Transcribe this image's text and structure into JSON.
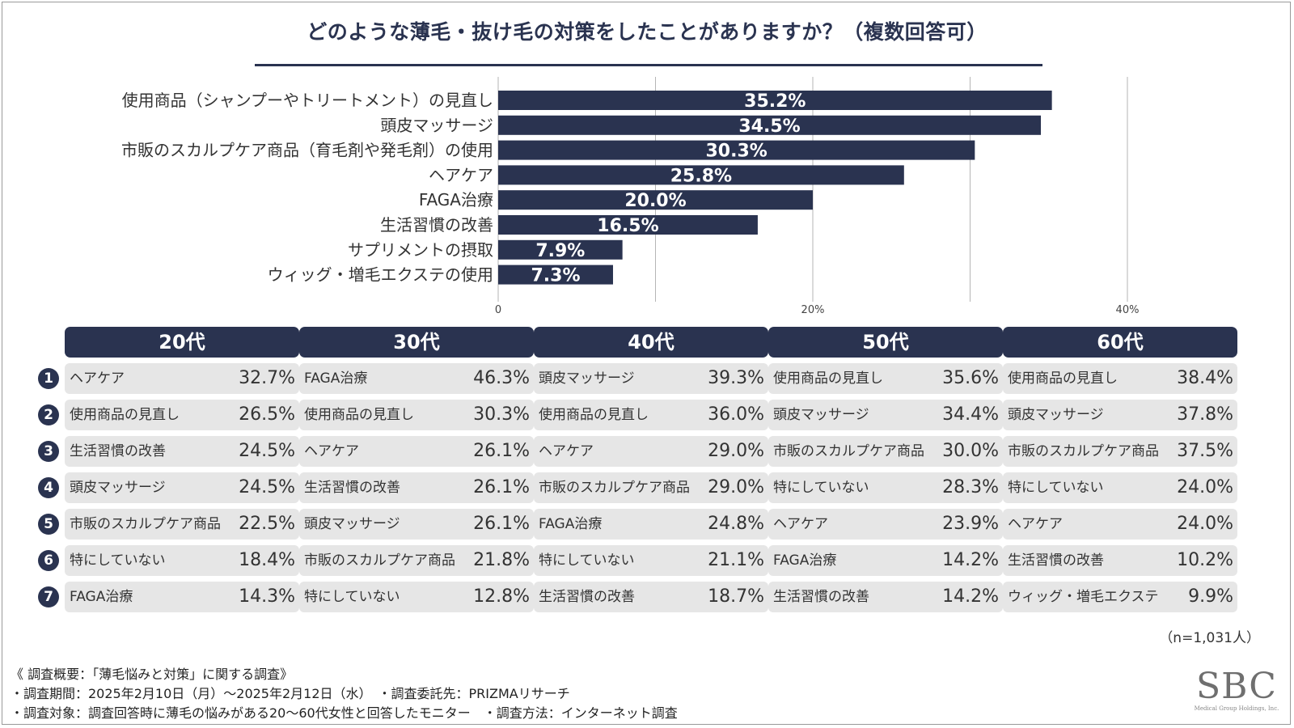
{
  "title": "どのような薄毛・抜け毛の対策をしたことがありますか？（複数回答可）",
  "chart_data": {
    "type": "bar",
    "orientation": "horizontal",
    "title": "どのような薄毛・抜け毛の対策をしたことがありますか？（複数回答可）",
    "categories": [
      "使用商品（シャンプーやトリートメント）の見直し",
      "頭皮マッサージ",
      "市販のスカルプケア商品（育毛剤や発毛剤）の使用",
      "ヘアケア",
      "FAGA治療",
      "生活習慣の改善",
      "サプリメントの摂取",
      "ウィッグ・増毛エクステの使用"
    ],
    "values": [
      35.2,
      34.5,
      30.3,
      25.8,
      20.0,
      16.5,
      7.9,
      7.3
    ],
    "value_labels": [
      "35.2%",
      "34.5%",
      "30.3%",
      "25.8%",
      "20.0%",
      "16.5%",
      "7.9%",
      "7.3%"
    ],
    "xlim": [
      0,
      40
    ],
    "ticks": [
      {
        "value": 0,
        "label": "0"
      },
      {
        "value": 20,
        "label": "20%"
      },
      {
        "value": 40,
        "label": "40%"
      }
    ],
    "gridlines": [
      10,
      20,
      30,
      40
    ],
    "bar_color": "#2a3350",
    "xlabel": "",
    "ylabel": ""
  },
  "rank_numbers": [
    "1",
    "2",
    "3",
    "4",
    "5",
    "6",
    "7"
  ],
  "age_groups": [
    {
      "header": "20代",
      "rows": [
        {
          "name": "ヘアケア",
          "value": "32.7%"
        },
        {
          "name": "使用商品の見直し",
          "value": "26.5%"
        },
        {
          "name": "生活習慣の改善",
          "value": "24.5%"
        },
        {
          "name": "頭皮マッサージ",
          "value": "24.5%"
        },
        {
          "name": "市販のスカルプケア商品",
          "value": "22.5%"
        },
        {
          "name": "特にしていない",
          "value": "18.4%"
        },
        {
          "name": "FAGA治療",
          "value": "14.3%"
        }
      ]
    },
    {
      "header": "30代",
      "rows": [
        {
          "name": "FAGA治療",
          "value": "46.3%"
        },
        {
          "name": "使用商品の見直し",
          "value": "30.3%"
        },
        {
          "name": "ヘアケア",
          "value": "26.1%"
        },
        {
          "name": "生活習慣の改善",
          "value": "26.1%"
        },
        {
          "name": "頭皮マッサージ",
          "value": "26.1%"
        },
        {
          "name": "市販のスカルプケア商品",
          "value": "21.8%"
        },
        {
          "name": "特にしていない",
          "value": "12.8%"
        }
      ]
    },
    {
      "header": "40代",
      "rows": [
        {
          "name": "頭皮マッサージ",
          "value": "39.3%"
        },
        {
          "name": "使用商品の見直し",
          "value": "36.0%"
        },
        {
          "name": "ヘアケア",
          "value": "29.0%"
        },
        {
          "name": "市販のスカルプケア商品",
          "value": "29.0%"
        },
        {
          "name": "FAGA治療",
          "value": "24.8%"
        },
        {
          "name": "特にしていない",
          "value": "21.1%"
        },
        {
          "name": "生活習慣の改善",
          "value": "18.7%"
        }
      ]
    },
    {
      "header": "50代",
      "rows": [
        {
          "name": "使用商品の見直し",
          "value": "35.6%"
        },
        {
          "name": "頭皮マッサージ",
          "value": "34.4%"
        },
        {
          "name": "市販のスカルプケア商品",
          "value": "30.0%"
        },
        {
          "name": "特にしていない",
          "value": "28.3%"
        },
        {
          "name": "ヘアケア",
          "value": "23.9%"
        },
        {
          "name": "FAGA治療",
          "value": "14.2%"
        },
        {
          "name": "生活習慣の改善",
          "value": "14.2%"
        }
      ]
    },
    {
      "header": "60代",
      "rows": [
        {
          "name": "使用商品の見直し",
          "value": "38.4%"
        },
        {
          "name": "頭皮マッサージ",
          "value": "37.8%"
        },
        {
          "name": "市販のスカルプケア商品",
          "value": "37.5%"
        },
        {
          "name": "特にしていない",
          "value": "24.0%"
        },
        {
          "name": "ヘアケア",
          "value": "24.0%"
        },
        {
          "name": "生活習慣の改善",
          "value": "10.2%"
        },
        {
          "name": "ウィッグ・増毛エクステ",
          "value": "9.9%"
        }
      ]
    }
  ],
  "sample_size": "（n=1,031人）",
  "notes": {
    "line1": "《 調査概要：「薄毛悩みと対策」に関する調査》",
    "line2": "・調査期間：2025年2月10日（月）～2025年2月12日（水）　・調査委託先：PRIZMAリサーチ",
    "line3": "・調査対象：調査回答時に薄毛の悩みがある20～60代女性と回答したモニター　・調査方法：インターネット調査"
  },
  "logo": {
    "mark": "SBC",
    "subtitle": "Medical Group Holdings, Inc."
  },
  "colors": {
    "accent": "#2a3350",
    "cell_background": "#e6e6e6",
    "grid": "#b5b5b5"
  }
}
